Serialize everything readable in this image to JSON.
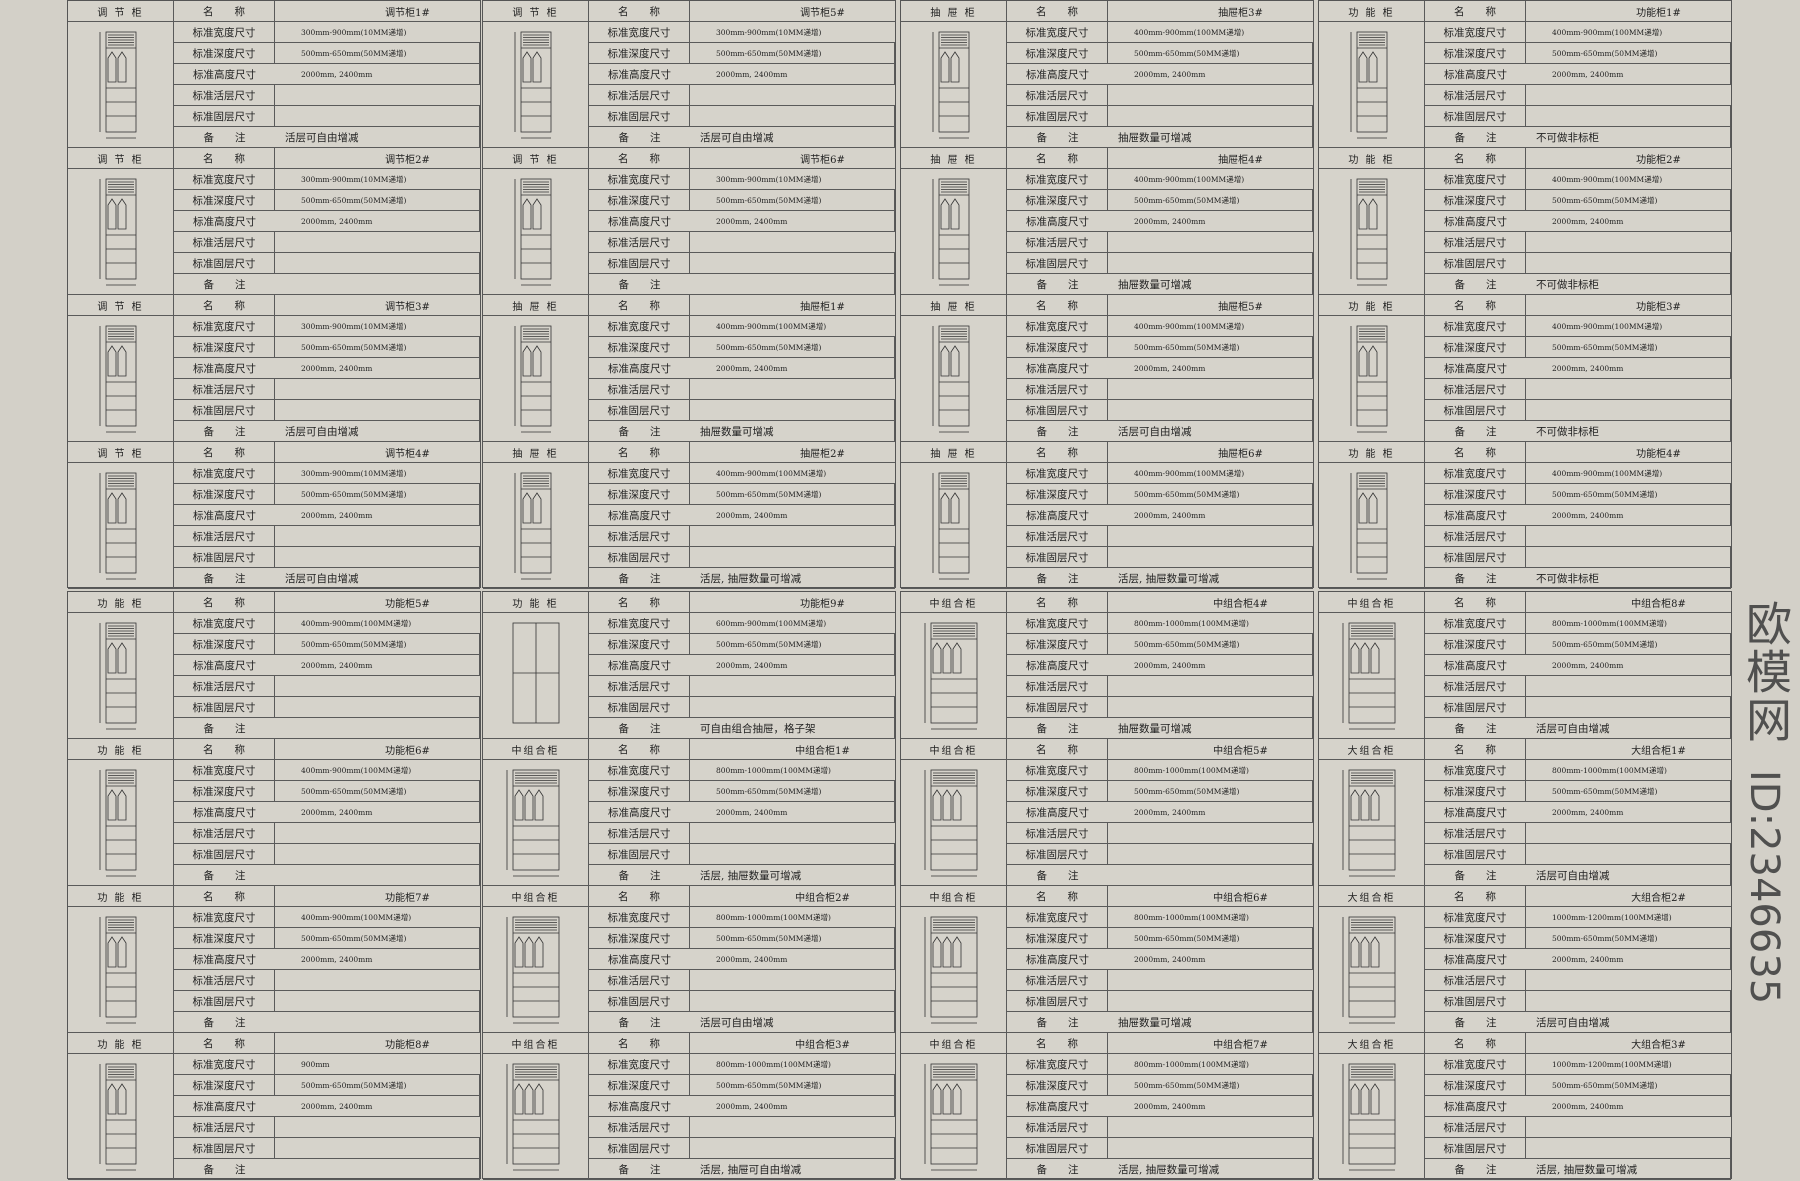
{
  "labels": {
    "name": "名　　称",
    "width": "标准宽度尺寸",
    "depth": "标准深度尺寸",
    "height": "标准高度尺寸",
    "movable": "标准活层尺寸",
    "fixed": "标准固层尺寸",
    "note": "备　　注"
  },
  "colors": {
    "background": "#d3d0c8",
    "line": "#5a5a5a"
  },
  "panels": [
    {
      "cards": [
        {
          "type": "调 节 柜",
          "name": "调节柜1#",
          "width": "300mm-900mm(10MM递增)",
          "depth": "500mm-650mm(50MM递增)",
          "height": "2000mm, 2400mm",
          "note": "活层可自由增减",
          "drawing": "narrow"
        },
        {
          "type": "调 节 柜",
          "name": "调节柜2#",
          "width": "300mm-900mm(10MM递增)",
          "depth": "500mm-650mm(50MM递增)",
          "height": "2000mm, 2400mm",
          "note": "",
          "drawing": "narrow"
        },
        {
          "type": "调 节 柜",
          "name": "调节柜3#",
          "width": "300mm-900mm(10MM递增)",
          "depth": "500mm-650mm(50MM递增)",
          "height": "2000mm, 2400mm",
          "note": "活层可自由增减",
          "drawing": "narrow"
        },
        {
          "type": "调 节 柜",
          "name": "调节柜4#",
          "width": "300mm-900mm(10MM递增)",
          "depth": "500mm-650mm(50MM递增)",
          "height": "2000mm, 2400mm",
          "note": "活层可自由增减",
          "drawing": "narrow"
        }
      ]
    },
    {
      "cards": [
        {
          "type": "调 节 柜",
          "name": "调节柜5#",
          "width": "300mm-900mm(10MM递增)",
          "depth": "500mm-650mm(50MM递增)",
          "height": "2000mm, 2400mm",
          "note": "活层可自由增减",
          "drawing": "narrow"
        },
        {
          "type": "调 节 柜",
          "name": "调节柜6#",
          "width": "300mm-900mm(10MM递增)",
          "depth": "500mm-650mm(50MM递增)",
          "height": "2000mm, 2400mm",
          "note": "",
          "drawing": "narrow"
        },
        {
          "type": "抽 屉 柜",
          "name": "抽屉柜1#",
          "width": "400mm-900mm(100MM递增)",
          "depth": "500mm-650mm(50MM递增)",
          "height": "2000mm, 2400mm",
          "note": "抽屉数量可增减",
          "drawing": "narrow"
        },
        {
          "type": "抽 屉 柜",
          "name": "抽屉柜2#",
          "width": "400mm-900mm(100MM递增)",
          "depth": "500mm-650mm(50MM递增)",
          "height": "2000mm, 2400mm",
          "note": "活层, 抽屉数量可增减",
          "drawing": "narrow"
        }
      ]
    },
    {
      "cards": [
        {
          "type": "抽 屉 柜",
          "name": "抽屉柜3#",
          "width": "400mm-900mm(100MM递增)",
          "depth": "500mm-650mm(50MM递增)",
          "height": "2000mm, 2400mm",
          "note": "抽屉数量可增减",
          "drawing": "narrow"
        },
        {
          "type": "抽 屉 柜",
          "name": "抽屉柜4#",
          "width": "400mm-900mm(100MM递增)",
          "depth": "500mm-650mm(50MM递增)",
          "height": "2000mm, 2400mm",
          "note": "抽屉数量可增减",
          "drawing": "narrow"
        },
        {
          "type": "抽 屉 柜",
          "name": "抽屉柜5#",
          "width": "400mm-900mm(100MM递增)",
          "depth": "500mm-650mm(50MM递增)",
          "height": "2000mm, 2400mm",
          "note": "活层可自由增减",
          "drawing": "narrow"
        },
        {
          "type": "抽 屉 柜",
          "name": "抽屉柜6#",
          "width": "400mm-900mm(100MM递增)",
          "depth": "500mm-650mm(50MM递增)",
          "height": "2000mm, 2400mm",
          "note": "活层, 抽屉数量可增减",
          "drawing": "narrow"
        }
      ]
    },
    {
      "cards": [
        {
          "type": "功 能 柜",
          "name": "功能柜1#",
          "width": "400mm-900mm(100MM递增)",
          "depth": "500mm-650mm(50MM递增)",
          "height": "2000mm, 2400mm",
          "note": "不可做非标柜",
          "drawing": "narrow"
        },
        {
          "type": "功 能 柜",
          "name": "功能柜2#",
          "width": "400mm-900mm(100MM递增)",
          "depth": "500mm-650mm(50MM递增)",
          "height": "2000mm, 2400mm",
          "note": "不可做非标柜",
          "drawing": "narrow"
        },
        {
          "type": "功 能 柜",
          "name": "功能柜3#",
          "width": "400mm-900mm(100MM递增)",
          "depth": "500mm-650mm(50MM递增)",
          "height": "2000mm, 2400mm",
          "note": "不可做非标柜",
          "drawing": "narrow"
        },
        {
          "type": "功 能 柜",
          "name": "功能柜4#",
          "width": "400mm-900mm(100MM递增)",
          "depth": "500mm-650mm(50MM递增)",
          "height": "2000mm, 2400mm",
          "note": "不可做非标柜",
          "drawing": "narrow"
        }
      ]
    },
    {
      "cards": [
        {
          "type": "功 能 柜",
          "name": "功能柜5#",
          "width": "400mm-900mm(100MM递增)",
          "depth": "500mm-650mm(50MM递增)",
          "height": "2000mm, 2400mm",
          "note": "",
          "drawing": "narrow"
        },
        {
          "type": "功 能 柜",
          "name": "功能柜6#",
          "width": "400mm-900mm(100MM递增)",
          "depth": "500mm-650mm(50MM递增)",
          "height": "2000mm, 2400mm",
          "note": "",
          "drawing": "narrow"
        },
        {
          "type": "功 能 柜",
          "name": "功能柜7#",
          "width": "400mm-900mm(100MM递增)",
          "depth": "500mm-650mm(50MM递增)",
          "height": "2000mm, 2400mm",
          "note": "",
          "drawing": "narrow"
        },
        {
          "type": "功 能 柜",
          "name": "功能柜8#",
          "width": "900mm",
          "depth": "500mm-650mm(50MM递增)",
          "height": "2000mm, 2400mm",
          "note": "",
          "drawing": "narrow"
        }
      ]
    },
    {
      "cards": [
        {
          "type": "功 能 柜",
          "name": "功能柜9#",
          "width": "600mm-900mm(100MM递增)",
          "depth": "500mm-650mm(50MM递增)",
          "height": "2000mm, 2400mm",
          "note": "可自由组合抽屉，格子架",
          "drawing": "doors"
        },
        {
          "type": "中组合柜",
          "name": "中组合柜1#",
          "width": "800mm-1000mm(100MM递增)",
          "depth": "500mm-650mm(50MM递增)",
          "height": "2000mm, 2400mm",
          "note": "活层, 抽屉数量可增减",
          "drawing": "wide"
        },
        {
          "type": "中组合柜",
          "name": "中组合柜2#",
          "width": "800mm-1000mm(100MM递增)",
          "depth": "500mm-650mm(50MM递增)",
          "height": "2000mm, 2400mm",
          "note": "活层可自由增减",
          "drawing": "wide"
        },
        {
          "type": "中组合柜",
          "name": "中组合柜3#",
          "width": "800mm-1000mm(100MM递增)",
          "depth": "500mm-650mm(50MM递增)",
          "height": "2000mm, 2400mm",
          "note": "活层, 抽屉可自由增减",
          "drawing": "wide"
        }
      ]
    },
    {
      "cards": [
        {
          "type": "中组合柜",
          "name": "中组合柜4#",
          "width": "800mm-1000mm(100MM递增)",
          "depth": "500mm-650mm(50MM递增)",
          "height": "2000mm, 2400mm",
          "note": "抽屉数量可增减",
          "drawing": "wide"
        },
        {
          "type": "中组合柜",
          "name": "中组合柜5#",
          "width": "800mm-1000mm(100MM递增)",
          "depth": "500mm-650mm(50MM递增)",
          "height": "2000mm, 2400mm",
          "note": "",
          "drawing": "wide"
        },
        {
          "type": "中组合柜",
          "name": "中组合柜6#",
          "width": "800mm-1000mm(100MM递增)",
          "depth": "500mm-650mm(50MM递增)",
          "height": "2000mm, 2400mm",
          "note": "抽屉数量可增减",
          "drawing": "wide"
        },
        {
          "type": "中组合柜",
          "name": "中组合柜7#",
          "width": "800mm-1000mm(100MM递增)",
          "depth": "500mm-650mm(50MM递增)",
          "height": "2000mm, 2400mm",
          "note": "活层, 抽屉数量可增减",
          "drawing": "wide"
        }
      ]
    },
    {
      "cards": [
        {
          "type": "中组合柜",
          "name": "中组合柜8#",
          "width": "800mm-1000mm(100MM递增)",
          "depth": "500mm-650mm(50MM递增)",
          "height": "2000mm, 2400mm",
          "note": "活层可自由增减",
          "drawing": "wide"
        },
        {
          "type": "大组合柜",
          "name": "大组合柜1#",
          "width": "800mm-1000mm(100MM递增)",
          "depth": "500mm-650mm(50MM递增)",
          "height": "2000mm, 2400mm",
          "note": "活层可自由增减",
          "drawing": "wide"
        },
        {
          "type": "大组合柜",
          "name": "大组合柜2#",
          "width": "1000mm-1200mm(100MM递增)",
          "depth": "500mm-650mm(50MM递增)",
          "height": "2000mm, 2400mm",
          "note": "活层可自由增减",
          "drawing": "wide"
        },
        {
          "type": "大组合柜",
          "name": "大组合柜3#",
          "width": "1000mm-1200mm(100MM递增)",
          "depth": "500mm-650mm(50MM递增)",
          "height": "2000mm, 2400mm",
          "note": "活层, 抽屉数量可增减",
          "drawing": "wide"
        }
      ]
    }
  ],
  "watermark": {
    "logo": "欧模网",
    "id": "ID:2346635"
  }
}
